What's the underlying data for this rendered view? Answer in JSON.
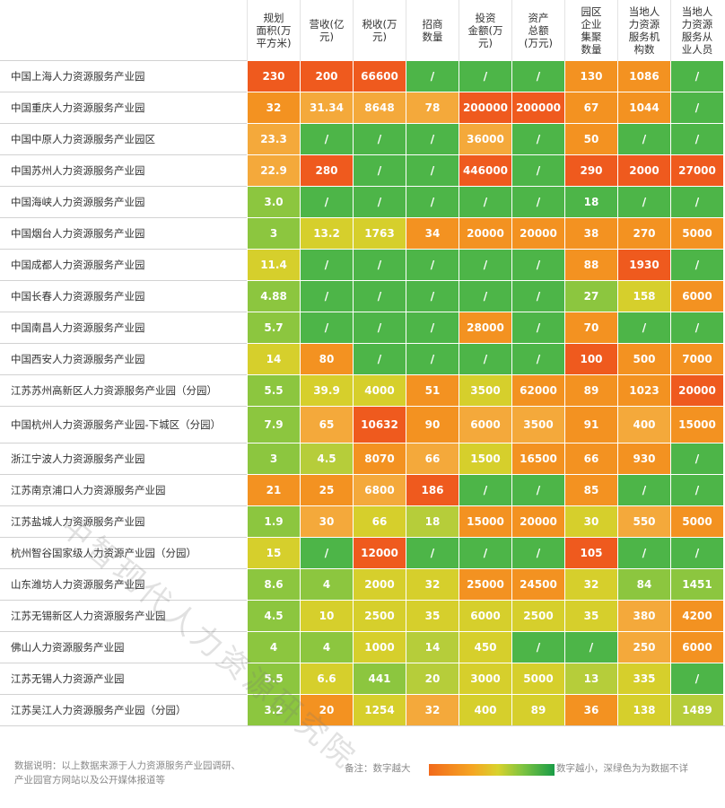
{
  "headers": [
    "规划面积(万平方米)",
    "营收(亿元)",
    "税收(万元)",
    "招商数量",
    "投资金额(万元)",
    "资产总额(万元)",
    "园区企业集聚数量",
    "当地人力资源服务机构数",
    "当地人力资源服务从业人员"
  ],
  "header_lines": [
    [
      "规划",
      "面积(万",
      "平方米)"
    ],
    [
      "营收(亿",
      "元)"
    ],
    [
      "税收(万",
      "元)"
    ],
    [
      "招商",
      "数量"
    ],
    [
      "投资",
      "金额(万",
      "元)"
    ],
    [
      "资产",
      "总额",
      "(万元)"
    ],
    [
      "园区",
      "企业",
      "集聚",
      "数量"
    ],
    [
      "当地人",
      "力资源",
      "服务机",
      "构数"
    ],
    [
      "当地人",
      "力资源",
      "服务从",
      "业人员"
    ]
  ],
  "colors": {
    "deep_orange": "#ef5a1e",
    "orange": "#f39221",
    "light_orange": "#f4a93b",
    "yellow": "#d6cf2c",
    "yellow_green": "#b6cd3a",
    "light_green": "#8cc63f",
    "green": "#4db548",
    "dark_green": "#17973f"
  },
  "chart_data": {
    "type": "heatmap",
    "rows": [
      {
        "name": "中国上海人力资源服务产业园",
        "values": [
          "230",
          "200",
          "66600",
          "/",
          "/",
          "/",
          "130",
          "1086",
          "/"
        ],
        "colors": [
          "deep_orange",
          "deep_orange",
          "deep_orange",
          "green",
          "green",
          "green",
          "orange",
          "orange",
          "green"
        ]
      },
      {
        "name": "中国重庆人力资源服务产业园",
        "values": [
          "32",
          "31.34",
          "8648",
          "78",
          "200000",
          "200000",
          "67",
          "1044",
          "/"
        ],
        "colors": [
          "orange",
          "light_orange",
          "light_orange",
          "light_orange",
          "deep_orange",
          "deep_orange",
          "orange",
          "orange",
          "green"
        ]
      },
      {
        "name": "中国中原人力资源服务产业园区",
        "values": [
          "23.3",
          "/",
          "/",
          "/",
          "36000",
          "/",
          "50",
          "/",
          "/"
        ],
        "colors": [
          "light_orange",
          "green",
          "green",
          "green",
          "light_orange",
          "green",
          "orange",
          "green",
          "green"
        ]
      },
      {
        "name": "中国苏州人力资源服务产业园",
        "values": [
          "22.9",
          "280",
          "/",
          "/",
          "446000",
          "/",
          "290",
          "2000",
          "27000"
        ],
        "colors": [
          "light_orange",
          "deep_orange",
          "green",
          "green",
          "deep_orange",
          "green",
          "deep_orange",
          "deep_orange",
          "deep_orange"
        ]
      },
      {
        "name": "中国海峡人力资源服务产业园",
        "values": [
          "3.0",
          "/",
          "/",
          "/",
          "/",
          "/",
          "18",
          "/",
          "/"
        ],
        "colors": [
          "light_green",
          "green",
          "green",
          "green",
          "green",
          "green",
          "green",
          "green",
          "green"
        ]
      },
      {
        "name": "中国烟台人力资源服务产业园",
        "values": [
          "3",
          "13.2",
          "1763",
          "34",
          "20000",
          "20000",
          "38",
          "270",
          "5000"
        ],
        "colors": [
          "light_green",
          "yellow",
          "yellow",
          "orange",
          "orange",
          "orange",
          "orange",
          "orange",
          "orange"
        ]
      },
      {
        "name": "中国成都人力资源服务产业园",
        "values": [
          "11.4",
          "/",
          "/",
          "/",
          "/",
          "/",
          "88",
          "1930",
          "/"
        ],
        "colors": [
          "yellow",
          "green",
          "green",
          "green",
          "green",
          "green",
          "orange",
          "deep_orange",
          "green"
        ]
      },
      {
        "name": "中国长春人力资源服务产业园",
        "values": [
          "4.88",
          "/",
          "/",
          "/",
          "/",
          "/",
          "27",
          "158",
          "6000"
        ],
        "colors": [
          "light_green",
          "green",
          "green",
          "green",
          "green",
          "green",
          "light_green",
          "yellow",
          "orange"
        ]
      },
      {
        "name": "中国南昌人力资源服务产业园",
        "values": [
          "5.7",
          "/",
          "/",
          "/",
          "28000",
          "/",
          "70",
          "/",
          "/"
        ],
        "colors": [
          "light_green",
          "green",
          "green",
          "green",
          "orange",
          "green",
          "orange",
          "green",
          "green"
        ]
      },
      {
        "name": "中国西安人力资源服务产业园",
        "values": [
          "14",
          "80",
          "/",
          "/",
          "/",
          "/",
          "100",
          "500",
          "7000"
        ],
        "colors": [
          "yellow",
          "orange",
          "green",
          "green",
          "green",
          "green",
          "deep_orange",
          "orange",
          "orange"
        ]
      },
      {
        "name": "江苏苏州高新区人力资源服务产业园（分园）",
        "values": [
          "5.5",
          "39.9",
          "4000",
          "51",
          "3500",
          "62000",
          "89",
          "1023",
          "20000"
        ],
        "colors": [
          "light_green",
          "yellow",
          "yellow",
          "orange",
          "yellow",
          "orange",
          "orange",
          "orange",
          "deep_orange"
        ]
      },
      {
        "name": "中国杭州人力资源服务产业园-下城区（分园）",
        "values": [
          "7.9",
          "65",
          "10632",
          "90",
          "6000",
          "3500",
          "91",
          "400",
          "15000"
        ],
        "colors": [
          "light_green",
          "light_orange",
          "deep_orange",
          "orange",
          "light_orange",
          "light_orange",
          "orange",
          "light_orange",
          "orange"
        ]
      },
      {
        "name": "浙江宁波人力资源服务产业园",
        "values": [
          "3",
          "4.5",
          "8070",
          "66",
          "1500",
          "16500",
          "66",
          "930",
          "/"
        ],
        "colors": [
          "light_green",
          "yellow_green",
          "orange",
          "light_orange",
          "yellow",
          "orange",
          "orange",
          "orange",
          "green"
        ]
      },
      {
        "name": "江苏南京浦口人力资源服务产业园",
        "values": [
          "21",
          "25",
          "6800",
          "186",
          "/",
          "/",
          "85",
          "/",
          "/"
        ],
        "colors": [
          "orange",
          "orange",
          "light_orange",
          "deep_orange",
          "green",
          "green",
          "orange",
          "green",
          "green"
        ]
      },
      {
        "name": "江苏盐城人力资源服务产业园",
        "values": [
          "1.9",
          "30",
          "66",
          "18",
          "15000",
          "20000",
          "30",
          "550",
          "5000"
        ],
        "colors": [
          "light_green",
          "light_orange",
          "yellow",
          "yellow_green",
          "orange",
          "orange",
          "yellow",
          "light_orange",
          "orange"
        ]
      },
      {
        "name": "杭州智谷国家级人力资源产业园（分园）",
        "values": [
          "15",
          "/",
          "12000",
          "/",
          "/",
          "/",
          "105",
          "/",
          "/"
        ],
        "colors": [
          "yellow",
          "green",
          "deep_orange",
          "green",
          "green",
          "green",
          "deep_orange",
          "green",
          "green"
        ]
      },
      {
        "name": "山东潍坊人力资源服务产业园",
        "values": [
          "8.6",
          "4",
          "2000",
          "32",
          "25000",
          "24500",
          "32",
          "84",
          "1451"
        ],
        "colors": [
          "light_green",
          "light_green",
          "yellow",
          "yellow",
          "orange",
          "orange",
          "yellow",
          "light_green",
          "light_green"
        ]
      },
      {
        "name": "江苏无锡新区人力资源服务产业园",
        "values": [
          "4.5",
          "10",
          "2500",
          "35",
          "6000",
          "2500",
          "35",
          "380",
          "4200"
        ],
        "colors": [
          "light_green",
          "yellow",
          "yellow",
          "yellow",
          "yellow",
          "yellow",
          "yellow",
          "light_orange",
          "orange"
        ]
      },
      {
        "name": "佛山人力资源服务产业园",
        "values": [
          "4",
          "4",
          "1000",
          "14",
          "450",
          "/",
          "/",
          "250",
          "6000"
        ],
        "colors": [
          "light_green",
          "light_green",
          "yellow",
          "yellow_green",
          "yellow",
          "green",
          "green",
          "light_orange",
          "orange"
        ]
      },
      {
        "name": "江苏无锡人力资源产业园",
        "values": [
          "5.5",
          "6.6",
          "441",
          "20",
          "3000",
          "5000",
          "13",
          "335",
          "/"
        ],
        "colors": [
          "light_green",
          "yellow",
          "light_green",
          "yellow_green",
          "yellow",
          "yellow",
          "yellow_green",
          "yellow",
          "green"
        ]
      },
      {
        "name": "江苏吴江人力资源服务产业园（分园）",
        "values": [
          "3.2",
          "20",
          "1254",
          "32",
          "400",
          "89",
          "36",
          "138",
          "1489"
        ],
        "colors": [
          "light_green",
          "orange",
          "yellow",
          "light_orange",
          "yellow",
          "yellow",
          "orange",
          "yellow",
          "yellow_green"
        ]
      }
    ]
  },
  "footer": {
    "note_line1": "数据说明：以上数据来源于人力资源服务产业园调研、",
    "note_line2": "产业园官方网站以及公开媒体报道等",
    "legend_left": "备注：数字越大",
    "legend_right": "数字越小，深绿色为为数据不详"
  },
  "watermark": "中智现代人力资源研究院"
}
